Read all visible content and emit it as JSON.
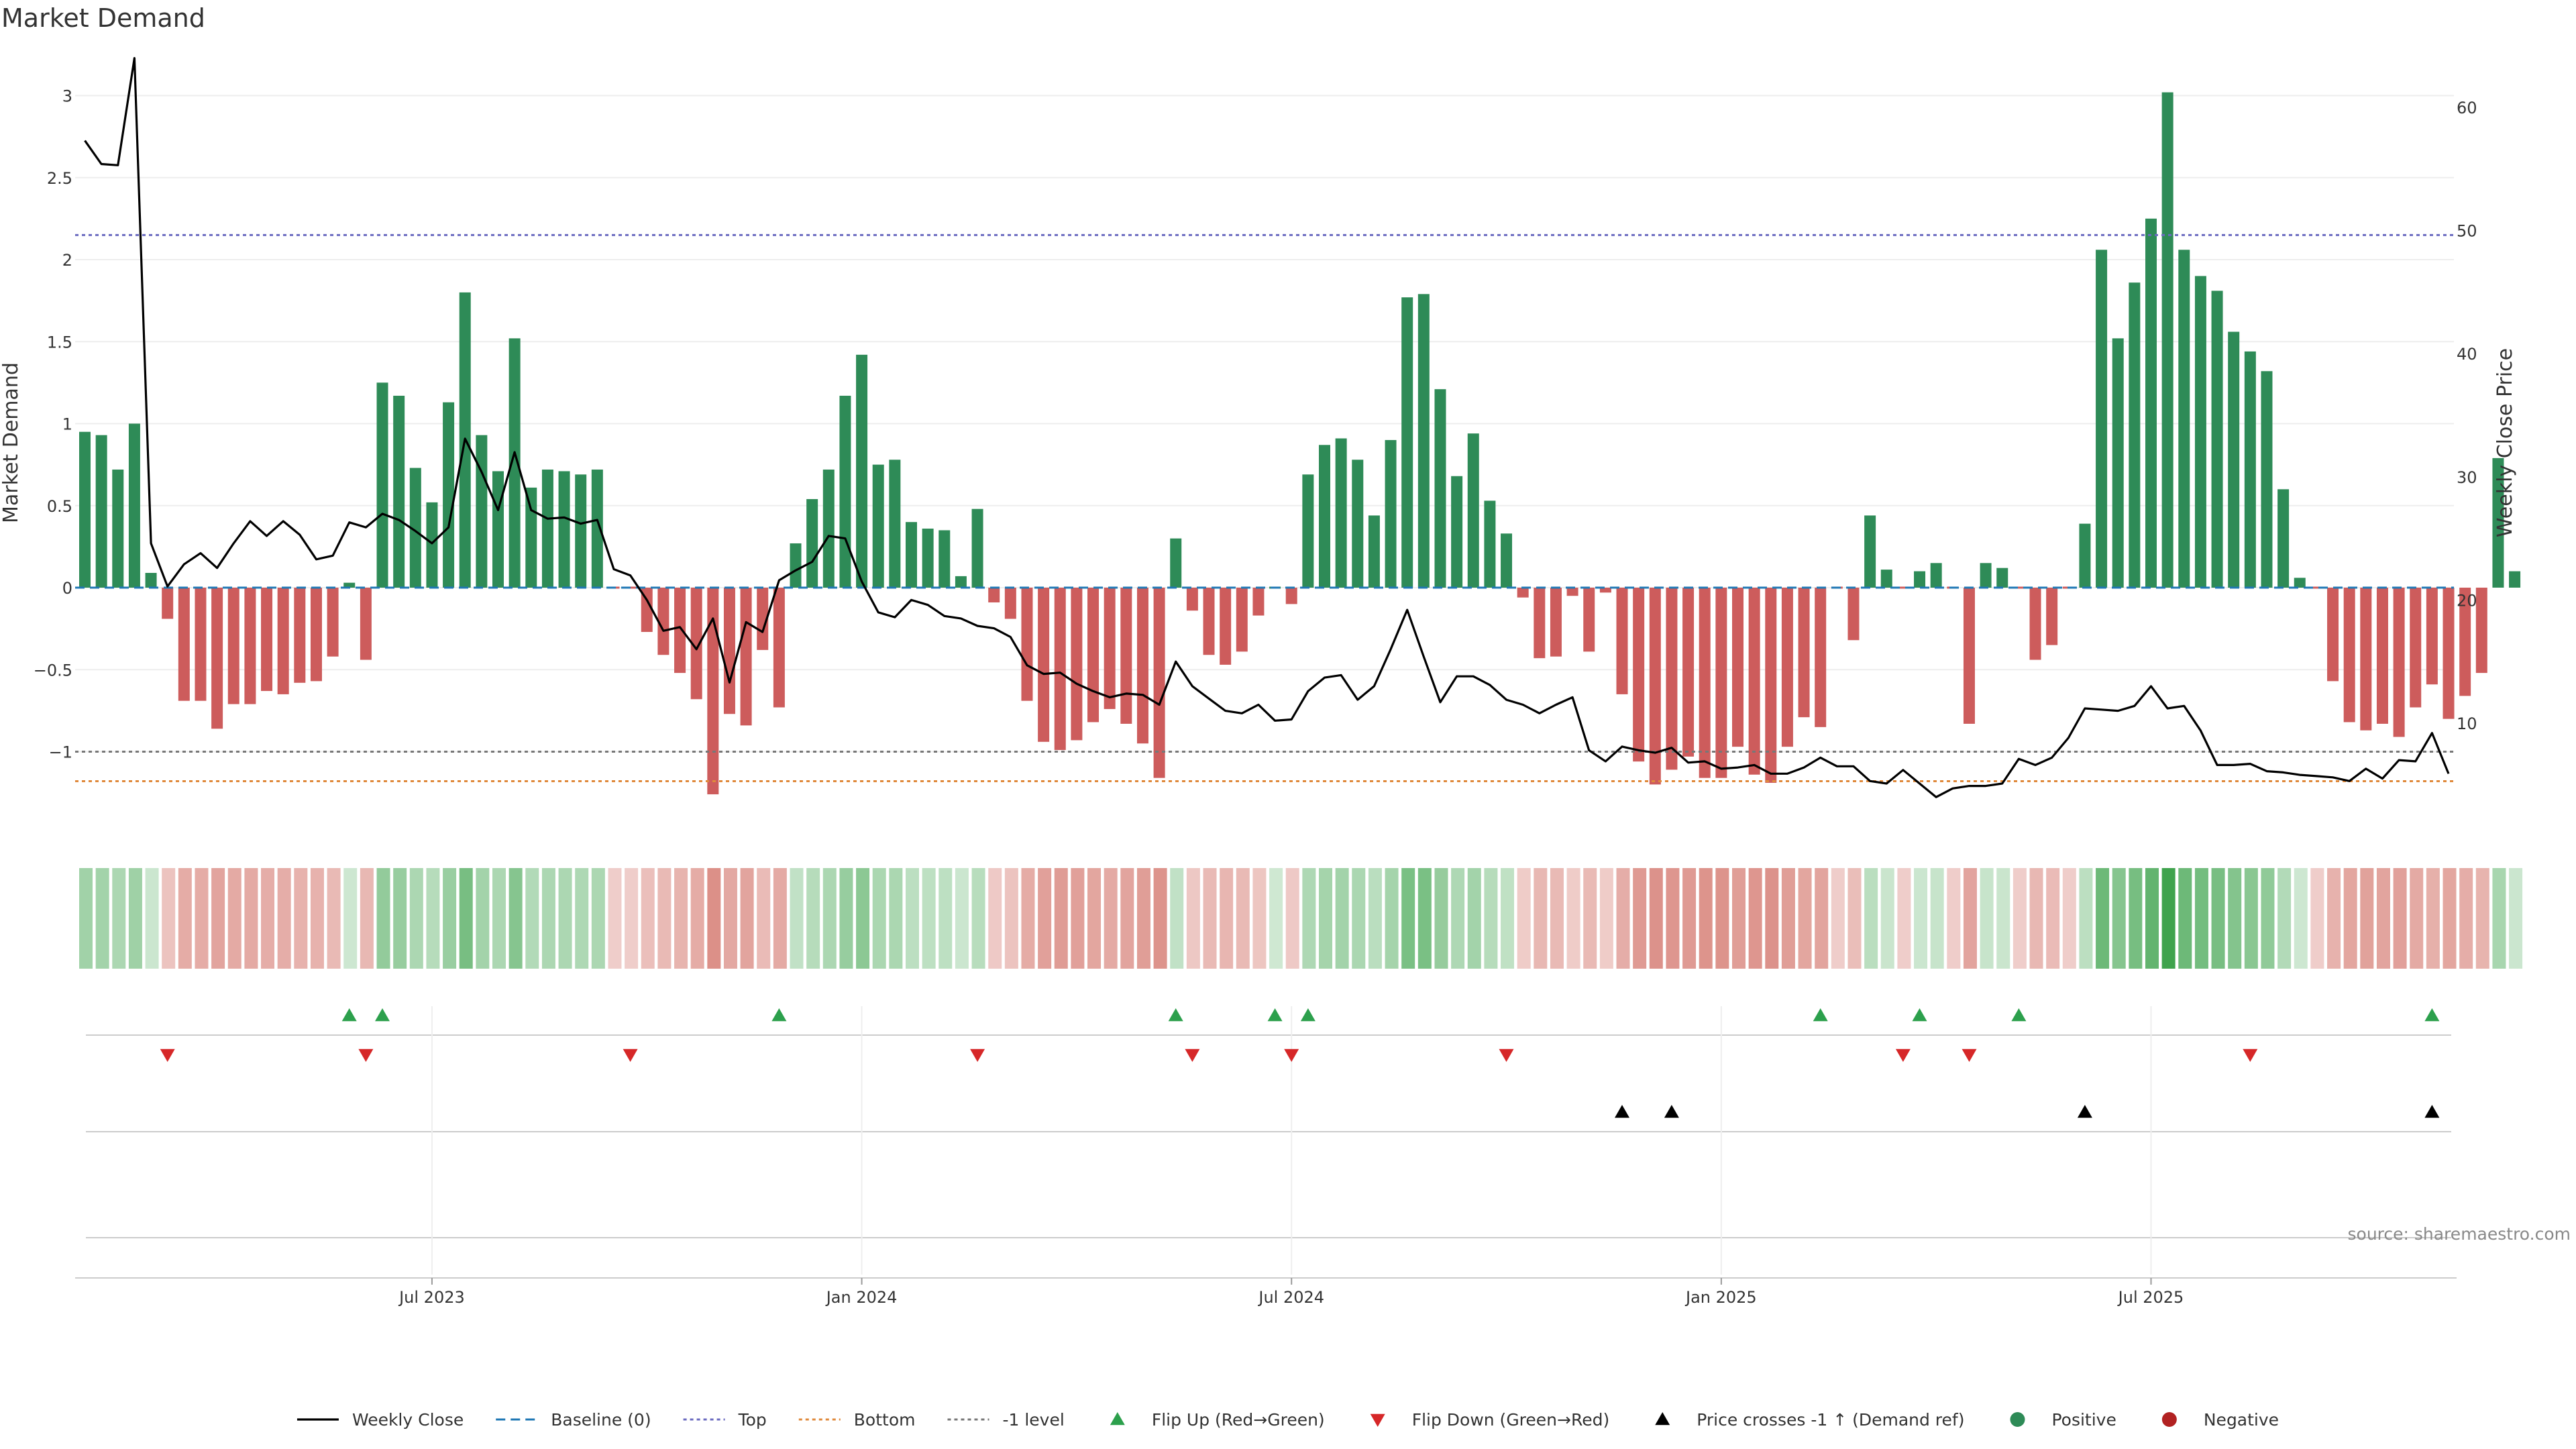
{
  "chart_data": {
    "type": "bar",
    "title": "Market Demand",
    "ylabel_left": "Market Demand",
    "ylabel_right": "Weekly Close Price",
    "source": "source: sharemaestro.com",
    "ylim_left": [
      -1.5,
      3.3
    ],
    "ylim_right": [
      2,
      66
    ],
    "left_ticks": [
      {
        "value": 3,
        "label": "3"
      },
      {
        "value": 2.5,
        "label": "2.5"
      },
      {
        "value": 2,
        "label": "2"
      },
      {
        "value": 1.5,
        "label": "1.5"
      },
      {
        "value": 1,
        "label": "1"
      },
      {
        "value": 0.5,
        "label": "0.5"
      },
      {
        "value": 0,
        "label": "0"
      },
      {
        "value": -0.5,
        "label": "−0.5"
      },
      {
        "value": -1,
        "label": "−1"
      }
    ],
    "right_ticks": [
      {
        "value": 60,
        "label": "60"
      },
      {
        "value": 50,
        "label": "50"
      },
      {
        "value": 40,
        "label": "40"
      },
      {
        "value": 30,
        "label": "30"
      },
      {
        "value": 20,
        "label": "20"
      },
      {
        "value": 10,
        "label": "10"
      }
    ],
    "x_ticks": [
      {
        "index": 21,
        "label": "Jul 2023"
      },
      {
        "index": 47,
        "label": "Jan 2024"
      },
      {
        "index": 73,
        "label": "Jul 2024"
      },
      {
        "index": 99,
        "label": "Jan 2025"
      },
      {
        "index": 125,
        "label": "Jul 2025"
      }
    ],
    "reference_lines": [
      {
        "name": "Top",
        "value": 2.15,
        "color": "#6b6bc0"
      },
      {
        "name": "Bottom",
        "value": -1.18,
        "color": "#e08a3c"
      },
      {
        "name": "-1 level",
        "value": -1.0,
        "color": "#777777"
      }
    ],
    "demand": [
      0.95,
      0.93,
      0.72,
      1.0,
      0.09,
      -0.19,
      -0.69,
      -0.69,
      -0.86,
      -0.71,
      -0.71,
      -0.63,
      -0.65,
      -0.58,
      -0.57,
      -0.42,
      0.03,
      -0.44,
      1.25,
      1.17,
      0.73,
      0.52,
      1.13,
      1.8,
      0.93,
      0.71,
      1.52,
      0.61,
      0.72,
      0.71,
      0.69,
      0.72,
      -0.01,
      -0.01,
      -0.27,
      -0.41,
      -0.52,
      -0.68,
      -1.26,
      -0.77,
      -0.84,
      -0.38,
      -0.73,
      0.27,
      0.54,
      0.72,
      1.17,
      1.42,
      0.75,
      0.78,
      0.4,
      0.36,
      0.35,
      0.07,
      0.48,
      -0.09,
      -0.19,
      -0.69,
      -0.94,
      -0.99,
      -0.93,
      -0.82,
      -0.74,
      -0.83,
      -0.95,
      -1.16,
      0.3,
      -0.14,
      -0.41,
      -0.47,
      -0.39,
      -0.17,
      0.01,
      -0.1,
      0.69,
      0.87,
      0.91,
      0.78,
      0.44,
      0.9,
      1.77,
      1.79,
      1.21,
      0.68,
      0.94,
      0.53,
      0.33,
      -0.06,
      -0.43,
      -0.42,
      -0.05,
      -0.39,
      -0.03,
      -0.65,
      -1.06,
      -1.2,
      -1.11,
      -1.03,
      -1.16,
      -1.16,
      -0.97,
      -1.14,
      -1.19,
      -0.97,
      -0.79,
      -0.85,
      -0.01,
      -0.32,
      0.44,
      0.11,
      -0.01,
      0.1,
      0.15,
      -0.01,
      -0.83,
      0.15,
      0.12,
      -0.01,
      -0.44,
      -0.35,
      -0.01,
      0.39,
      2.06,
      1.52,
      1.86,
      2.25,
      3.02,
      2.06,
      1.9,
      1.81,
      1.56,
      1.44,
      1.32,
      0.6,
      0.06,
      -0.01,
      -0.57,
      -0.82,
      -0.87,
      -0.83,
      -0.91,
      -0.73,
      -0.59,
      -0.8,
      -0.66,
      -0.52,
      0.79,
      0.1
    ],
    "weekly_close": [
      57.3,
      55.4,
      55.3,
      64,
      24.6,
      21.1,
      22.9,
      23.8,
      22.6,
      24.6,
      26.4,
      25.2,
      26.4,
      25.3,
      23.3,
      23.6,
      26.3,
      25.9,
      27,
      26.5,
      25.6,
      24.6,
      25.9,
      33.1,
      30.4,
      27.3,
      32,
      27.3,
      26.6,
      26.7,
      26.2,
      26.5,
      22.5,
      22,
      20,
      17.5,
      17.8,
      16,
      18.5,
      13.3,
      18.2,
      17.4,
      21.6,
      22.4,
      23.1,
      25.2,
      25,
      21.5,
      19,
      18.6,
      20,
      19.6,
      18.7,
      18.5,
      17.9,
      17.7,
      17,
      14.7,
      14,
      14.1,
      13.2,
      12.6,
      12.1,
      12.4,
      12.3,
      11.5,
      15,
      13,
      12,
      11,
      10.8,
      11.5,
      10.2,
      10.3,
      12.6,
      13.7,
      13.9,
      11.9,
      13,
      16,
      19.2,
      15.4,
      11.7,
      13.8,
      13.8,
      13.1,
      11.9,
      11.5,
      10.8,
      11.5,
      12.1,
      7.8,
      6.9,
      8.1,
      7.8,
      7.6,
      8,
      6.8,
      6.9,
      6.3,
      6.4,
      6.6,
      5.9,
      5.9,
      6.4,
      7.2,
      6.5,
      6.5,
      5.3,
      5.1,
      6.2,
      5.1,
      4,
      4.7,
      4.9,
      4.9,
      5.1,
      7.1,
      6.6,
      7.2,
      8.8,
      11.2,
      11.1,
      11,
      11.4,
      13,
      11.2,
      11.4,
      9.4,
      6.6,
      6.6,
      6.7,
      6.1,
      6,
      5.8,
      5.7,
      5.6,
      5.3,
      6.3,
      5.5,
      7,
      6.9,
      9.2,
      5.9
    ],
    "flip_up_indices": [
      16,
      18,
      42,
      66,
      72,
      74,
      105,
      111,
      117,
      142
    ],
    "flip_down_indices": [
      5,
      17,
      33,
      54,
      67,
      73,
      86,
      110,
      114,
      131
    ],
    "price_cross_indices": [
      93,
      96,
      121,
      142
    ],
    "legend": [
      {
        "key": "weekly_close",
        "label": "Weekly Close",
        "color": "#000000"
      },
      {
        "key": "baseline",
        "label": "Baseline (0)",
        "color": "#1f77b4"
      },
      {
        "key": "top",
        "label": "Top",
        "color": "#6b6bc0"
      },
      {
        "key": "bottom",
        "label": "Bottom",
        "color": "#e08a3c"
      },
      {
        "key": "minus1",
        "label": "-1 level",
        "color": "#777777"
      },
      {
        "key": "flip_up",
        "label": "Flip Up (Red→Green)",
        "color": "#2ca04c"
      },
      {
        "key": "flip_down",
        "label": "Flip Down (Green→Red)",
        "color": "#d62728"
      },
      {
        "key": "price_cross",
        "label": "Price crosses -1 ↑ (Demand ref)",
        "color": "#000000"
      },
      {
        "key": "positive",
        "label": "Positive",
        "color": "#2e8b57"
      },
      {
        "key": "negative",
        "label": "Negative",
        "color": "#b22222"
      }
    ],
    "colors": {
      "positive_bar": "#2e8b57",
      "negative_bar": "#cd5c5c",
      "heat_positive": "#3fa34d",
      "heat_negative": "#c0392b",
      "line": "#000000"
    }
  }
}
